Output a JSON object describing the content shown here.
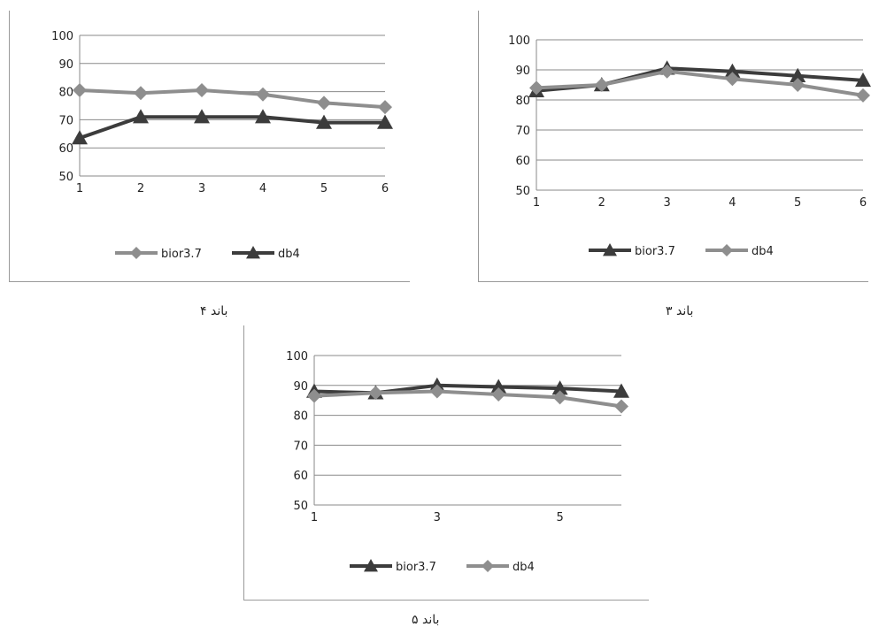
{
  "chart_data": [
    {
      "type": "line",
      "caption": "باند ۴",
      "x": [
        1,
        2,
        3,
        4,
        5,
        6
      ],
      "x_tick_labels": [
        "1",
        "2",
        "3",
        "4",
        "5",
        "6"
      ],
      "ylim": [
        50,
        100
      ],
      "y_ticks": [
        50,
        60,
        70,
        80,
        90,
        100
      ],
      "grid": true,
      "legend_position": "bottom",
      "series": [
        {
          "name": "bior3.7",
          "marker": "diamond",
          "color": "#8e8e8e",
          "values": [
            80.5,
            79.5,
            80.5,
            79,
            76,
            74.5
          ]
        },
        {
          "name": "db4",
          "marker": "triangle",
          "color": "#3c3c3c",
          "values": [
            63.5,
            71,
            71,
            71,
            69,
            69
          ]
        }
      ]
    },
    {
      "type": "line",
      "caption": "باند ۳",
      "x": [
        1,
        2,
        3,
        4,
        5,
        6
      ],
      "x_tick_labels": [
        "1",
        "2",
        "3",
        "4",
        "5",
        "6"
      ],
      "ylim": [
        50,
        100
      ],
      "y_ticks": [
        50,
        60,
        70,
        80,
        90,
        100
      ],
      "grid": true,
      "legend_position": "bottom",
      "series": [
        {
          "name": "bior3.7",
          "marker": "triangle",
          "color": "#3c3c3c",
          "values": [
            83,
            85,
            90.5,
            89.5,
            88,
            86.5
          ]
        },
        {
          "name": "db4",
          "marker": "diamond",
          "color": "#8e8e8e",
          "values": [
            84,
            85,
            89.5,
            87,
            85,
            81.5
          ]
        }
      ]
    },
    {
      "type": "line",
      "caption": "باند ۵",
      "x": [
        1,
        2,
        3,
        4,
        5,
        6
      ],
      "x_tick_labels": [
        "1",
        "",
        "3",
        "",
        "5",
        ""
      ],
      "ylim": [
        50,
        100
      ],
      "y_ticks": [
        50,
        60,
        70,
        80,
        90,
        100
      ],
      "grid": true,
      "legend_position": "bottom",
      "series": [
        {
          "name": "bior3.7",
          "marker": "triangle",
          "color": "#3c3c3c",
          "values": [
            88,
            87.5,
            90,
            89.5,
            89,
            88
          ]
        },
        {
          "name": "db4",
          "marker": "diamond",
          "color": "#8e8e8e",
          "values": [
            86.5,
            87.5,
            88,
            87,
            86,
            83
          ]
        }
      ]
    }
  ]
}
